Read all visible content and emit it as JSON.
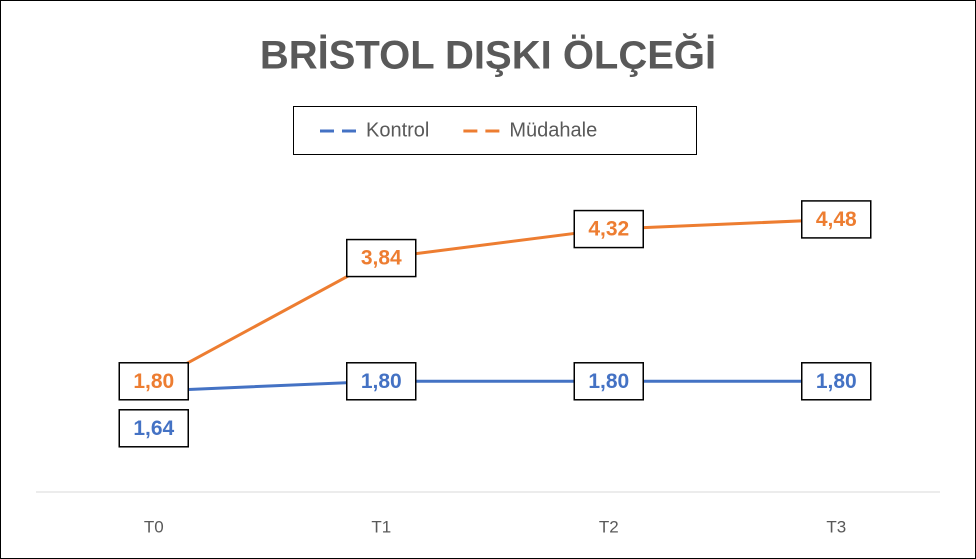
{
  "chart_data": {
    "type": "line",
    "title": "BRİSTOL DIŞKI ÖLÇEĞİ",
    "categories": [
      "T0",
      "T1",
      "T2",
      "T3"
    ],
    "series": [
      {
        "name": "Kontrol",
        "color": "#4472c4",
        "values": [
          1.64,
          1.8,
          1.8,
          1.8
        ],
        "value_labels": [
          "1,64",
          "1,80",
          "1,80",
          "1,80"
        ]
      },
      {
        "name": "Müdahale",
        "color": "#ed7d31",
        "values": [
          1.8,
          3.84,
          4.32,
          4.48
        ],
        "value_labels": [
          "1,80",
          "3,84",
          "4,32",
          "4,48"
        ]
      }
    ],
    "ylim": [
      0,
      5
    ],
    "grid": false,
    "legend": "top"
  }
}
